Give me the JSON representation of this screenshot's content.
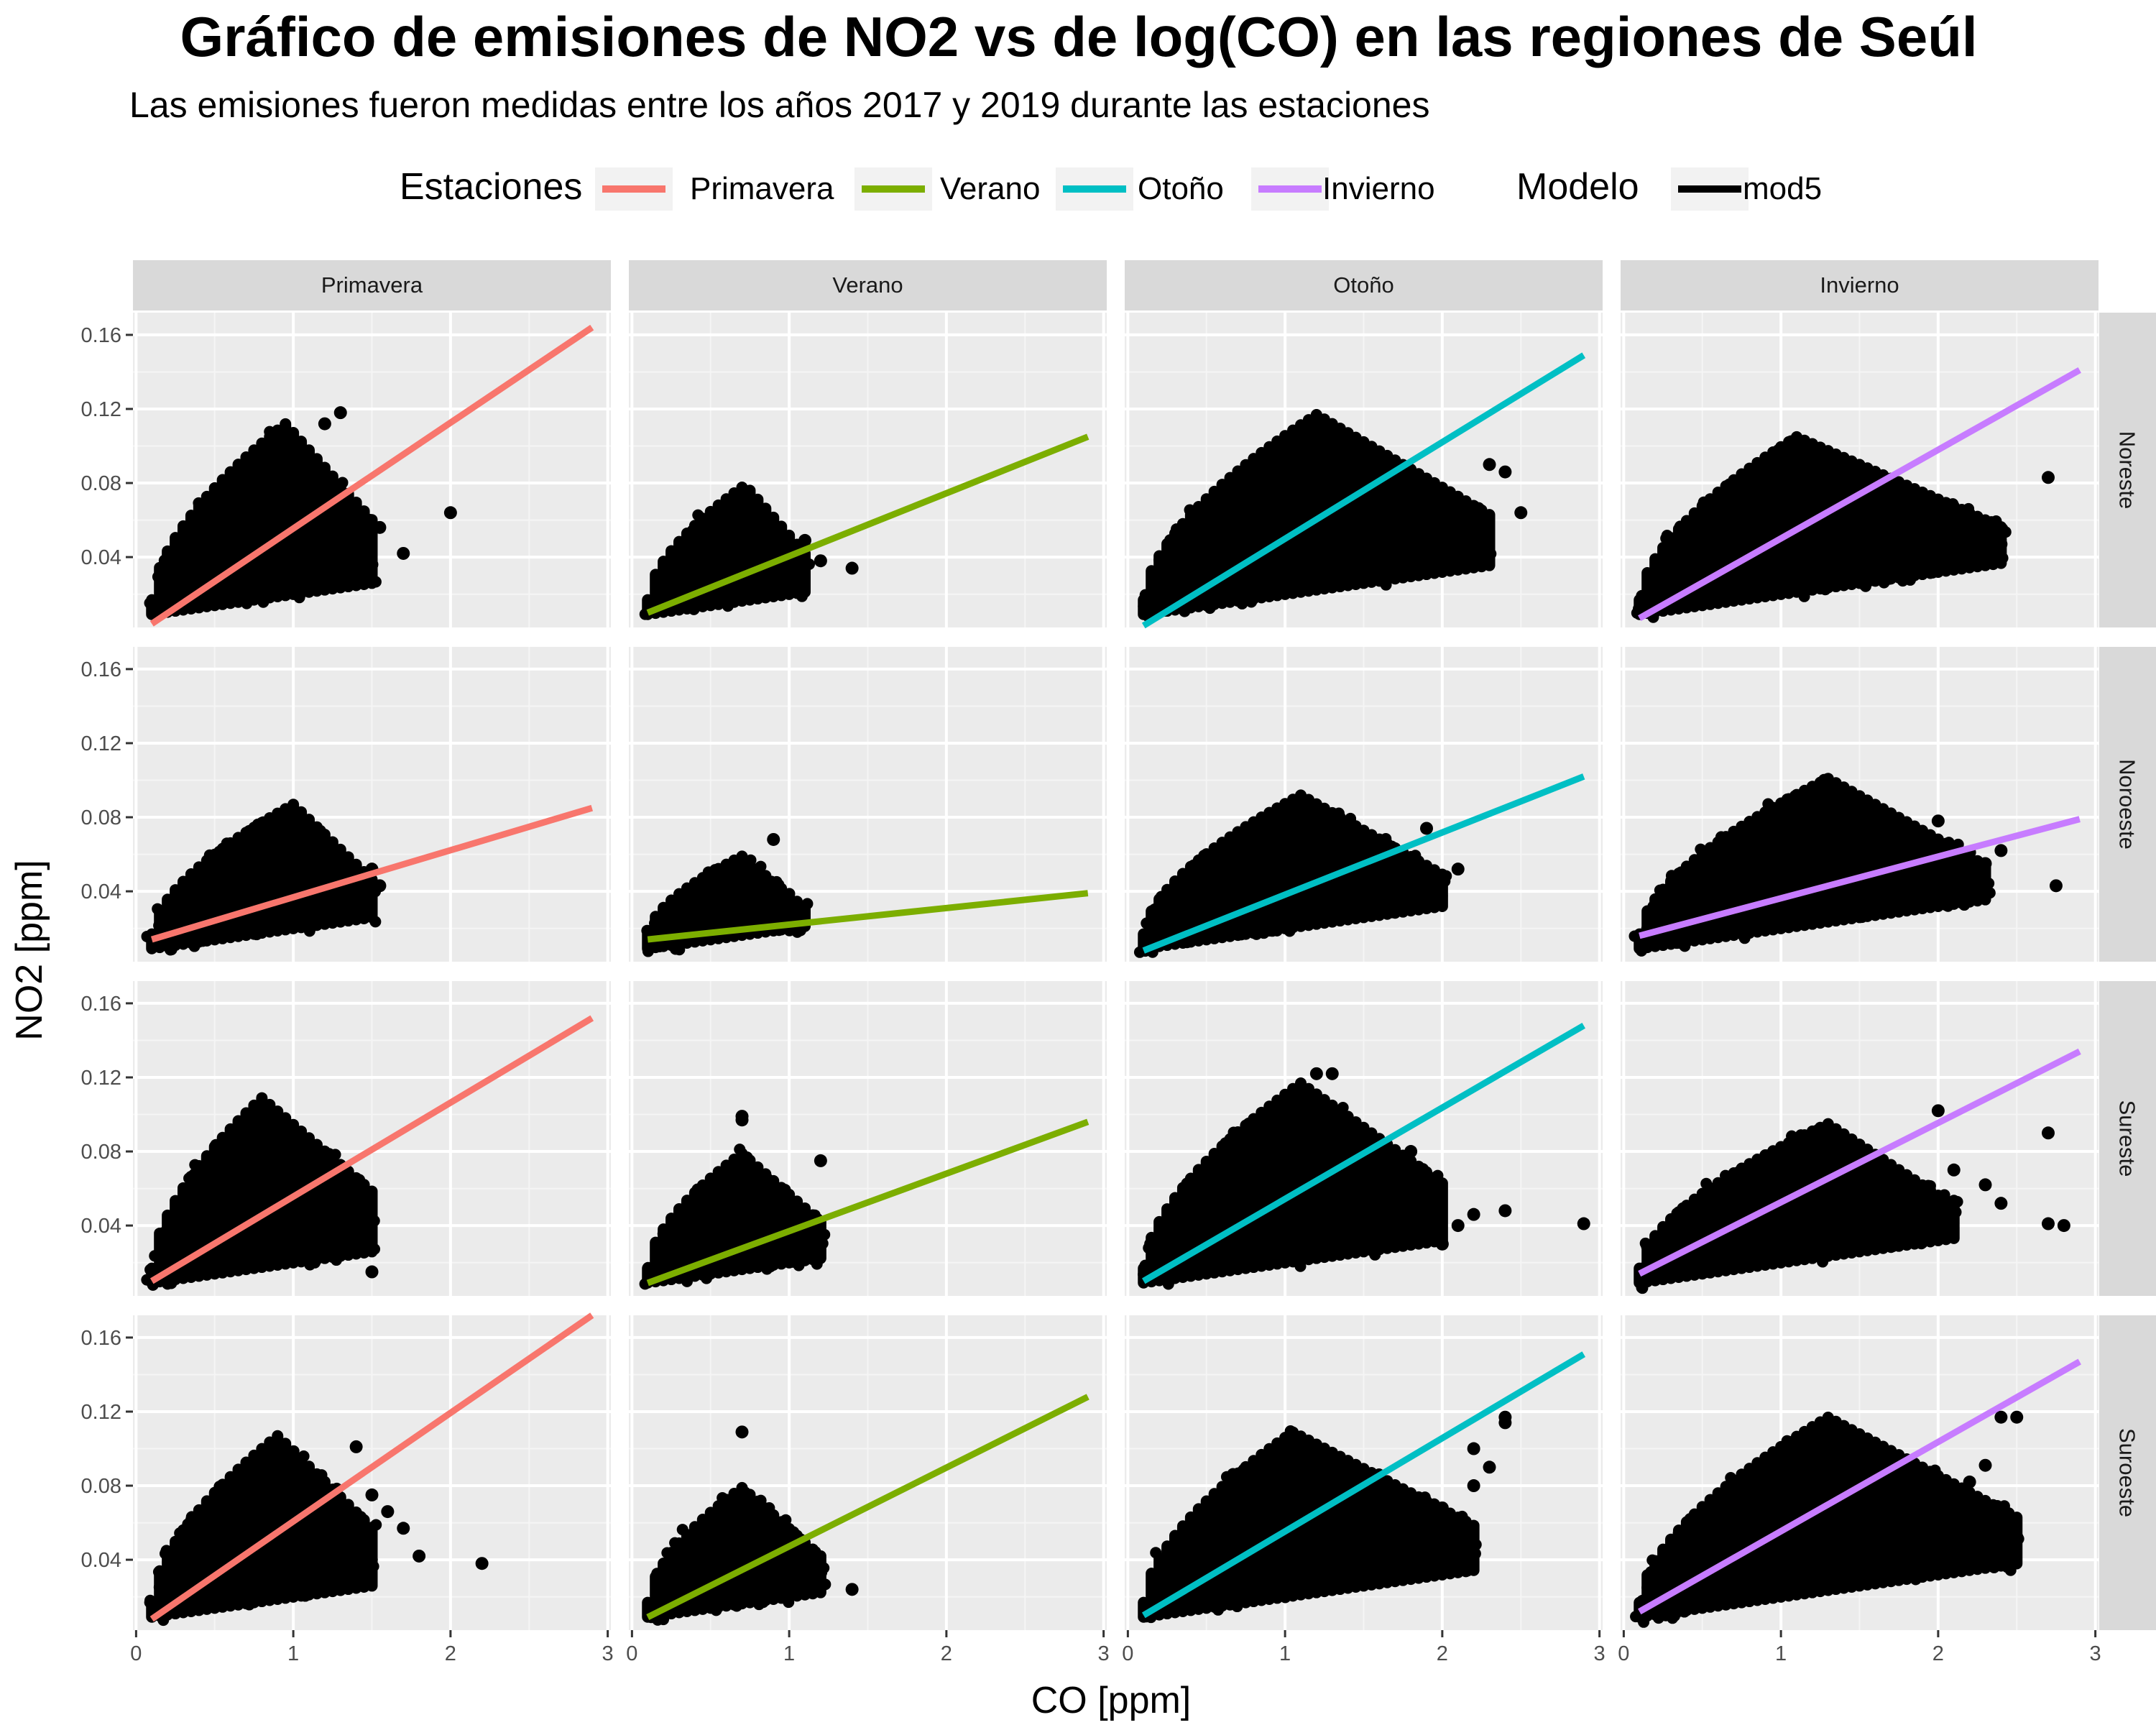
{
  "chart_data": {
    "type": "scatter",
    "title": "Gráfico de emisiones de NO2 vs de log(CO) en las regiones de Seúl",
    "subtitle": "Las emisiones fueron medidas entre los años 2017 y 2019 durante las estaciones",
    "xlabel": "CO [ppm]",
    "ylabel": "NO2 [ppm]",
    "xlim": [
      -0.02,
      3.02
    ],
    "ylim": [
      0.002,
      0.172
    ],
    "x_ticks": [
      0,
      1,
      2,
      3
    ],
    "x_tick_labels": [
      "0",
      "1",
      "2",
      "3"
    ],
    "y_ticks": [
      0.04,
      0.08,
      0.12,
      0.16
    ],
    "y_tick_labels": [
      "0.04",
      "0.08",
      "0.12",
      "0.16"
    ],
    "grid": true,
    "legend": {
      "placement": "top",
      "seasons_title": "Estaciones",
      "seasons": [
        {
          "name": "Primavera",
          "color": "#F8766D"
        },
        {
          "name": "Verano",
          "color": "#7CAE00"
        },
        {
          "name": "Otoño",
          "color": "#00BFC4"
        },
        {
          "name": "Invierno",
          "color": "#C77CFF"
        }
      ],
      "model_title": "Modelo",
      "model": {
        "name": "mod5",
        "color": "#000000"
      }
    },
    "columns": [
      "Primavera",
      "Verano",
      "Otoño",
      "Invierno"
    ],
    "rows": [
      "Noreste",
      "Noroeste",
      "Sureste",
      "Suroeste"
    ],
    "panels": [
      {
        "row": "Noreste",
        "col": "Primavera",
        "fit": {
          "x": [
            0.1,
            2.9
          ],
          "y": [
            0.004,
            0.164
          ]
        },
        "cloud": {
          "x_min": 0.1,
          "x_max": 1.5,
          "peak_x": 0.95,
          "y_max_peak": 0.115
        },
        "outliers": [
          [
            2.0,
            0.064
          ],
          [
            1.7,
            0.042
          ],
          [
            1.55,
            0.056
          ],
          [
            1.45,
            0.047
          ],
          [
            1.3,
            0.118
          ],
          [
            1.2,
            0.112
          ],
          [
            1.5,
            0.036
          ]
        ]
      },
      {
        "row": "Noreste",
        "col": "Verano",
        "fit": {
          "x": [
            0.1,
            2.9
          ],
          "y": [
            0.01,
            0.105
          ]
        },
        "cloud": {
          "x_min": 0.1,
          "x_max": 1.1,
          "peak_x": 0.72,
          "y_max_peak": 0.082
        },
        "outliers": [
          [
            1.4,
            0.034
          ],
          [
            1.2,
            0.038
          ],
          [
            1.1,
            0.049
          ]
        ]
      },
      {
        "row": "Noreste",
        "col": "Otoño",
        "fit": {
          "x": [
            0.1,
            2.9
          ],
          "y": [
            0.003,
            0.149
          ]
        },
        "cloud": {
          "x_min": 0.1,
          "x_max": 2.3,
          "peak_x": 1.2,
          "y_max_peak": 0.12
        },
        "outliers": [
          [
            2.5,
            0.064
          ],
          [
            2.4,
            0.086
          ],
          [
            2.3,
            0.09
          ]
        ]
      },
      {
        "row": "Noreste",
        "col": "Invierno",
        "fit": {
          "x": [
            0.1,
            2.9
          ],
          "y": [
            0.007,
            0.141
          ]
        },
        "cloud": {
          "x_min": 0.1,
          "x_max": 2.4,
          "peak_x": 1.1,
          "y_max_peak": 0.108
        },
        "outliers": [
          [
            2.7,
            0.083
          ],
          [
            2.4,
            0.047
          ],
          [
            2.2,
            0.058
          ],
          [
            1.9,
            0.042
          ]
        ]
      },
      {
        "row": "Noroeste",
        "col": "Primavera",
        "fit": {
          "x": [
            0.1,
            2.9
          ],
          "y": [
            0.014,
            0.085
          ]
        },
        "cloud": {
          "x_min": 0.1,
          "x_max": 1.5,
          "peak_x": 1.0,
          "y_max_peak": 0.09
        },
        "outliers": [
          [
            1.55,
            0.043
          ],
          [
            1.5,
            0.052
          ],
          [
            1.45,
            0.036
          ]
        ]
      },
      {
        "row": "Noroeste",
        "col": "Verano",
        "fit": {
          "x": [
            0.1,
            2.9
          ],
          "y": [
            0.014,
            0.039
          ]
        },
        "cloud": {
          "x_min": 0.1,
          "x_max": 1.1,
          "peak_x": 0.7,
          "y_max_peak": 0.062
        },
        "outliers": [
          [
            0.9,
            0.068
          ],
          [
            1.0,
            0.02
          ]
        ]
      },
      {
        "row": "Noroeste",
        "col": "Otoño",
        "fit": {
          "x": [
            0.1,
            2.9
          ],
          "y": [
            0.008,
            0.102
          ]
        },
        "cloud": {
          "x_min": 0.1,
          "x_max": 2.0,
          "peak_x": 1.1,
          "y_max_peak": 0.095
        },
        "outliers": [
          [
            2.1,
            0.052
          ],
          [
            1.9,
            0.074
          ]
        ]
      },
      {
        "row": "Noroeste",
        "col": "Invierno",
        "fit": {
          "x": [
            0.1,
            2.9
          ],
          "y": [
            0.016,
            0.079
          ]
        },
        "cloud": {
          "x_min": 0.1,
          "x_max": 2.3,
          "peak_x": 1.3,
          "y_max_peak": 0.104
        },
        "outliers": [
          [
            2.75,
            0.043
          ],
          [
            2.4,
            0.062
          ],
          [
            2.3,
            0.055
          ],
          [
            2.2,
            0.061
          ],
          [
            2.0,
            0.078
          ]
        ]
      },
      {
        "row": "Sureste",
        "col": "Primavera",
        "fit": {
          "x": [
            0.1,
            2.9
          ],
          "y": [
            0.01,
            0.152
          ]
        },
        "cloud": {
          "x_min": 0.1,
          "x_max": 1.5,
          "peak_x": 0.8,
          "y_max_peak": 0.112
        },
        "outliers": [
          [
            1.5,
            0.015
          ],
          [
            1.5,
            0.042
          ],
          [
            1.4,
            0.042
          ],
          [
            1.3,
            0.024
          ]
        ]
      },
      {
        "row": "Sureste",
        "col": "Verano",
        "fit": {
          "x": [
            0.1,
            2.9
          ],
          "y": [
            0.009,
            0.096
          ]
        },
        "cloud": {
          "x_min": 0.1,
          "x_max": 1.2,
          "peak_x": 0.7,
          "y_max_peak": 0.082
        },
        "outliers": [
          [
            1.2,
            0.075
          ],
          [
            0.7,
            0.099
          ],
          [
            0.7,
            0.097
          ]
        ]
      },
      {
        "row": "Sureste",
        "col": "Otoño",
        "fit": {
          "x": [
            0.1,
            2.9
          ],
          "y": [
            0.01,
            0.148
          ]
        },
        "cloud": {
          "x_min": 0.1,
          "x_max": 2.0,
          "peak_x": 1.1,
          "y_max_peak": 0.12
        },
        "outliers": [
          [
            2.9,
            0.041
          ],
          [
            2.4,
            0.048
          ],
          [
            2.2,
            0.046
          ],
          [
            2.1,
            0.04
          ],
          [
            2.0,
            0.03
          ],
          [
            1.8,
            0.08
          ],
          [
            1.3,
            0.122
          ],
          [
            1.2,
            0.122
          ]
        ]
      },
      {
        "row": "Sureste",
        "col": "Invierno",
        "fit": {
          "x": [
            0.1,
            2.9
          ],
          "y": [
            0.014,
            0.134
          ]
        },
        "cloud": {
          "x_min": 0.1,
          "x_max": 2.1,
          "peak_x": 1.3,
          "y_max_peak": 0.098
        },
        "outliers": [
          [
            2.8,
            0.04
          ],
          [
            2.7,
            0.041
          ],
          [
            2.7,
            0.09
          ],
          [
            2.4,
            0.052
          ],
          [
            2.3,
            0.062
          ],
          [
            2.1,
            0.07
          ],
          [
            2.0,
            0.102
          ]
        ]
      },
      {
        "row": "Suroeste",
        "col": "Primavera",
        "fit": {
          "x": [
            0.1,
            2.9
          ],
          "y": [
            0.008,
            0.172
          ]
        },
        "cloud": {
          "x_min": 0.1,
          "x_max": 1.5,
          "peak_x": 0.9,
          "y_max_peak": 0.11
        },
        "outliers": [
          [
            2.2,
            0.038
          ],
          [
            1.8,
            0.042
          ],
          [
            1.7,
            0.057
          ],
          [
            1.6,
            0.066
          ],
          [
            1.5,
            0.075
          ],
          [
            1.4,
            0.101
          ]
        ]
      },
      {
        "row": "Suroeste",
        "col": "Verano",
        "fit": {
          "x": [
            0.1,
            2.9
          ],
          "y": [
            0.009,
            0.128
          ]
        },
        "cloud": {
          "x_min": 0.1,
          "x_max": 1.2,
          "peak_x": 0.7,
          "y_max_peak": 0.082
        },
        "outliers": [
          [
            1.4,
            0.024
          ],
          [
            0.7,
            0.109
          ],
          [
            1.2,
            0.035
          ]
        ]
      },
      {
        "row": "Suroeste",
        "col": "Otoño",
        "fit": {
          "x": [
            0.1,
            2.9
          ],
          "y": [
            0.01,
            0.151
          ]
        },
        "cloud": {
          "x_min": 0.1,
          "x_max": 2.2,
          "peak_x": 1.05,
          "y_max_peak": 0.112
        },
        "outliers": [
          [
            2.4,
            0.117
          ],
          [
            2.4,
            0.114
          ],
          [
            2.3,
            0.09
          ],
          [
            2.2,
            0.1
          ],
          [
            2.2,
            0.08
          ],
          [
            2.0,
            0.068
          ]
        ]
      },
      {
        "row": "Suroeste",
        "col": "Invierno",
        "fit": {
          "x": [
            0.1,
            2.9
          ],
          "y": [
            0.012,
            0.147
          ]
        },
        "cloud": {
          "x_min": 0.1,
          "x_max": 2.5,
          "peak_x": 1.3,
          "y_max_peak": 0.12
        },
        "outliers": [
          [
            2.5,
            0.117
          ],
          [
            2.4,
            0.117
          ],
          [
            2.3,
            0.091
          ],
          [
            2.3,
            0.044
          ],
          [
            2.2,
            0.082
          ],
          [
            1.9,
            0.06
          ]
        ]
      }
    ]
  }
}
